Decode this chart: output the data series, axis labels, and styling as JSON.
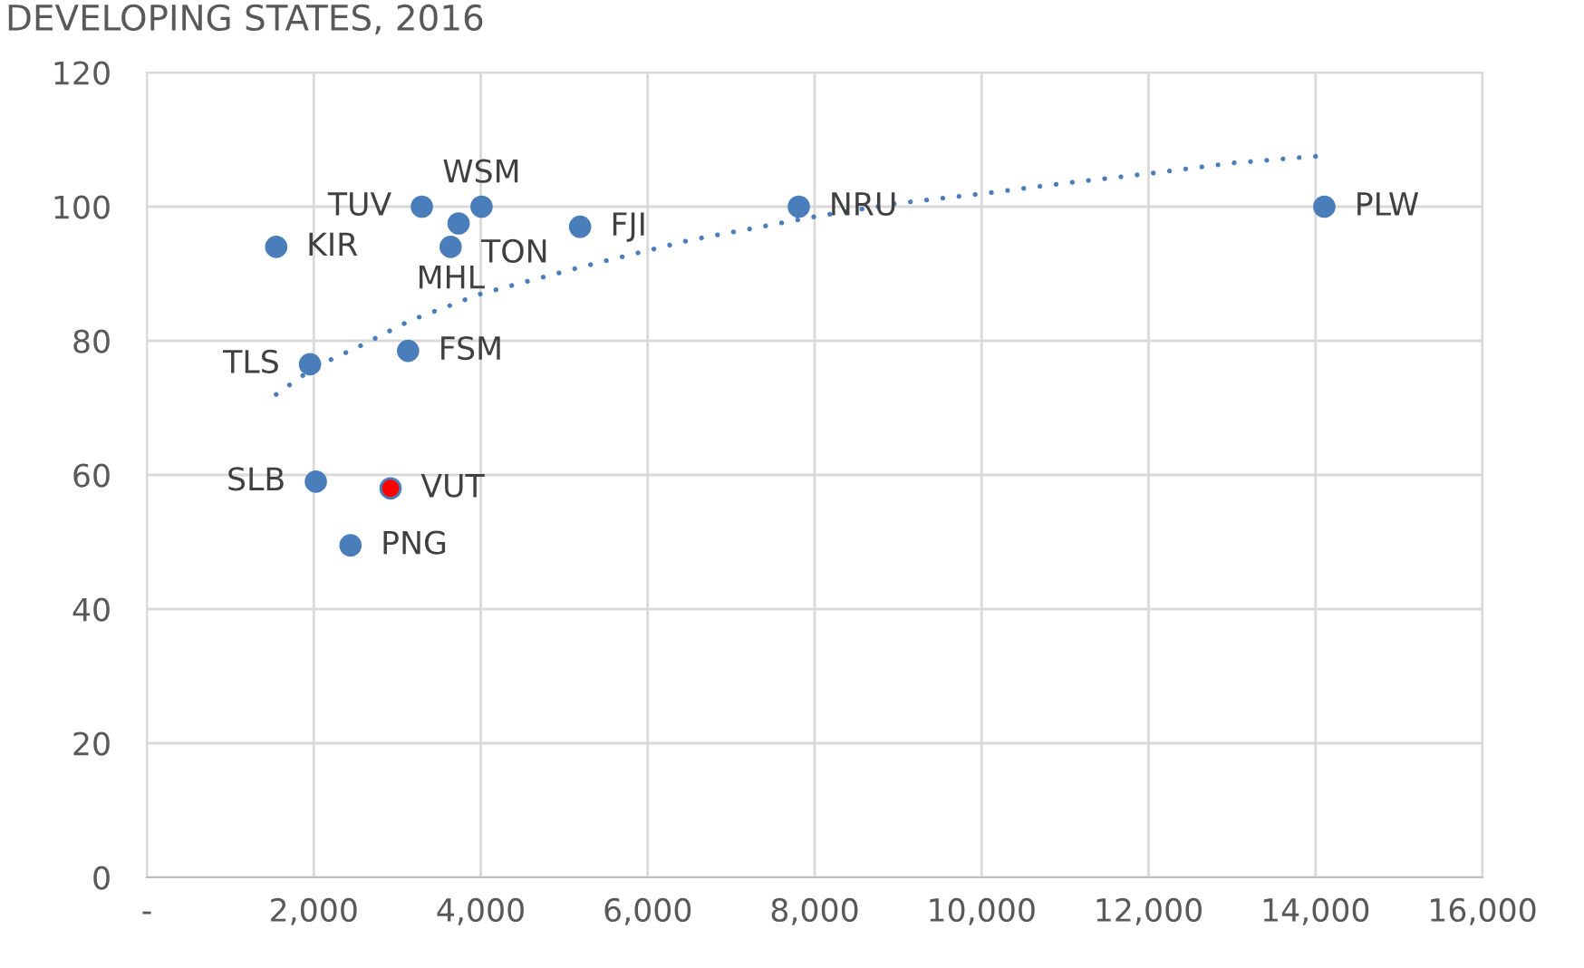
{
  "chart_data": {
    "type": "scatter",
    "title": "DEVELOPING STATES, 2016",
    "series": [
      {
        "type": "scatter",
        "color": "#4a7ebb",
        "marker": "circle",
        "colors": [
          "#4a7ebb",
          "#4a7ebb",
          "#4a7ebb",
          "#4a7ebb",
          "#ff0000",
          "#4a7ebb",
          "#4a7ebb",
          "#4a7ebb",
          "#4a7ebb",
          "#4a7ebb",
          "#4a7ebb",
          "#4a7ebb",
          "#4a7ebb"
        ],
        "x": [
          1550,
          1955,
          2025,
          2440,
          2920,
          3130,
          3295,
          3640,
          3735,
          4010,
          5190,
          7810,
          14105
        ],
        "values": [
          94,
          76.5,
          59,
          49.5,
          58,
          78.5,
          100,
          94,
          97.5,
          100,
          97,
          100,
          100
        ]
      },
      {
        "type": "line",
        "color": "#4a7ebb",
        "line_style": "dotted",
        "x": [
          1550,
          2000,
          2600,
          3150,
          4000,
          5200,
          6500,
          8000,
          9000,
          10050,
          11000,
          12050,
          13000,
          14000
        ],
        "values": [
          72,
          76,
          79.5,
          83,
          87,
          91,
          95,
          98.5,
          100.5,
          102,
          103.5,
          105,
          106.5,
          107.5
        ]
      }
    ],
    "xlim": [
      0,
      16000
    ],
    "xticks": [
      {
        "value": 0,
        "label": "-"
      },
      {
        "value": 2000,
        "label": "2,000"
      },
      {
        "value": 4000,
        "label": "4,000"
      },
      {
        "value": 6000,
        "label": "6,000"
      },
      {
        "value": 8000,
        "label": "8,000"
      },
      {
        "value": 10000,
        "label": "10,000"
      },
      {
        "value": 12000,
        "label": "12,000"
      },
      {
        "value": 14000,
        "label": "14,000"
      },
      {
        "value": 16000,
        "label": "16,000"
      }
    ],
    "ylim": [
      0,
      120
    ],
    "yticks": [
      0,
      20,
      40,
      60,
      80,
      100,
      120
    ],
    "grid": true,
    "annotations": [
      {
        "text": "KIR",
        "x": 1550,
        "y": 94
      },
      {
        "text": "TLS",
        "x": 1955,
        "y": 76.5
      },
      {
        "text": "SLB",
        "x": 2025,
        "y": 59
      },
      {
        "text": "PNG",
        "x": 2440,
        "y": 49.5
      },
      {
        "text": "VUT",
        "x": 2920,
        "y": 58
      },
      {
        "text": "FSM",
        "x": 3130,
        "y": 78.5
      },
      {
        "text": "TUV",
        "x": 3295,
        "y": 100
      },
      {
        "text": "MHL",
        "x": 3640,
        "y": 94
      },
      {
        "text": "TON",
        "x": 3735,
        "y": 97.5
      },
      {
        "text": "WSM",
        "x": 4010,
        "y": 100
      },
      {
        "text": "FJI",
        "x": 5190,
        "y": 97
      },
      {
        "text": "NRU",
        "x": 7810,
        "y": 100
      },
      {
        "text": "PLW",
        "x": 14105,
        "y": 100
      }
    ]
  }
}
